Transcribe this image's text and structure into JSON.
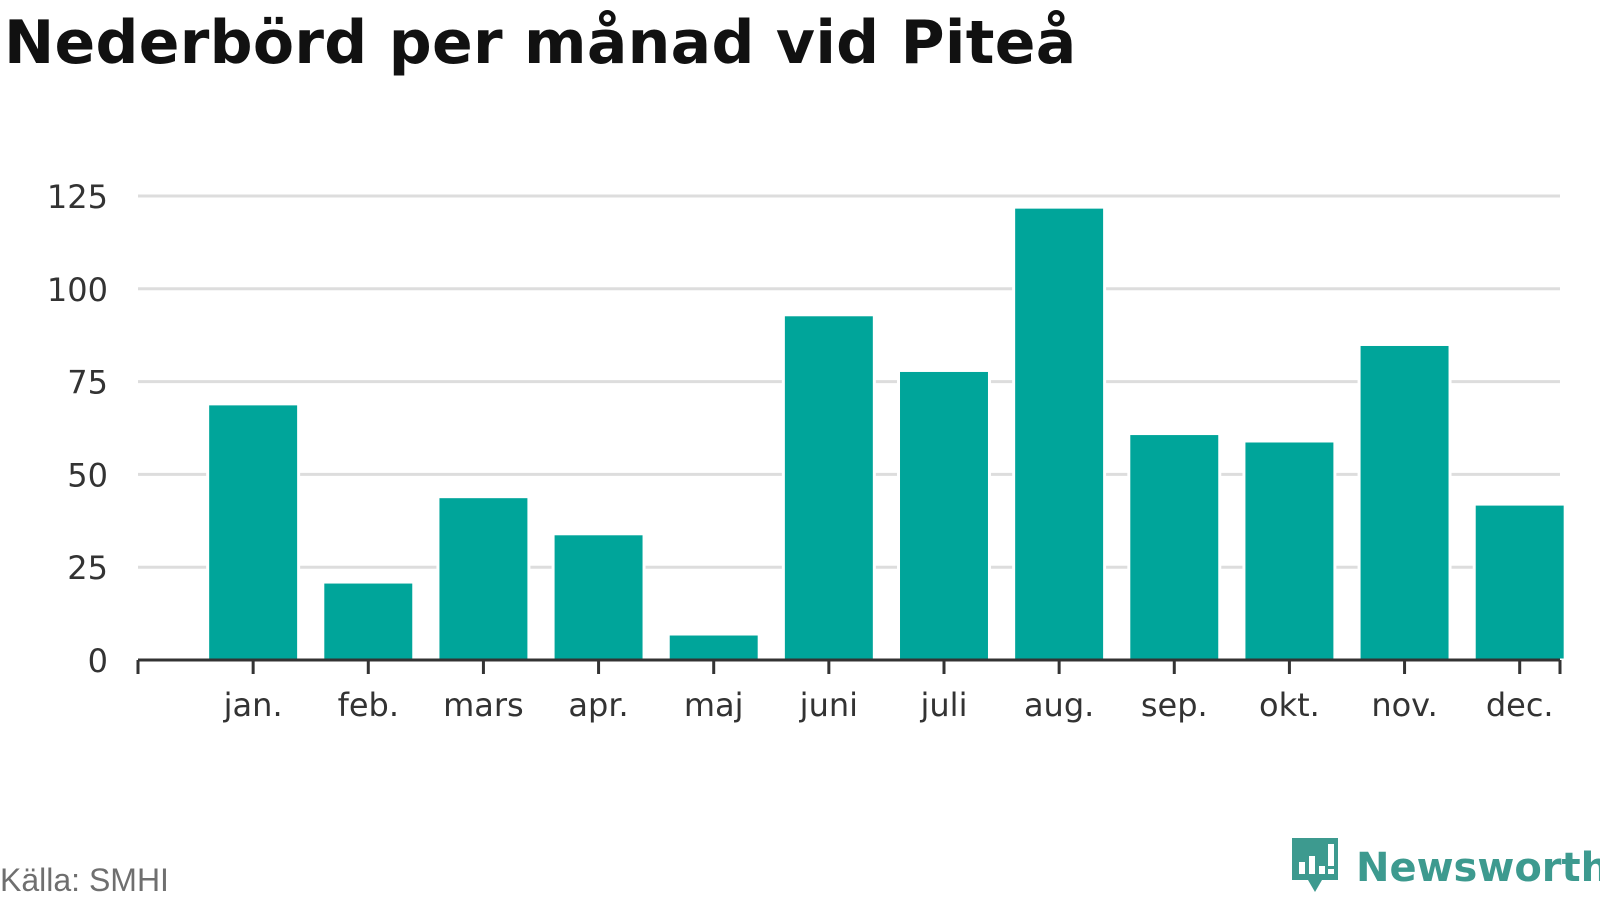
{
  "title": "Nederbörd per månad vid Piteå",
  "source": "Källa: SMHI",
  "brand": {
    "name": "Newsworthy",
    "icon": "bar-chart-speech-bubble-icon"
  },
  "colors": {
    "bar": "#00a59a",
    "grid": "#dddddd",
    "axis": "#333333",
    "brand": "#3d9a8f"
  },
  "chart_data": {
    "type": "bar",
    "title": "Nederbörd per månad vid Piteå",
    "xlabel": "",
    "ylabel": "",
    "categories": [
      "jan.",
      "feb.",
      "mars",
      "apr.",
      "maj",
      "juni",
      "juli",
      "aug.",
      "sep.",
      "okt.",
      "nov.",
      "dec."
    ],
    "values": [
      69,
      21,
      44,
      34,
      7,
      93,
      78,
      122,
      61,
      59,
      85,
      42
    ],
    "ylim": [
      0,
      125
    ],
    "yticks": [
      0,
      25,
      50,
      75,
      100,
      125
    ],
    "grid": true,
    "legend": "none"
  }
}
